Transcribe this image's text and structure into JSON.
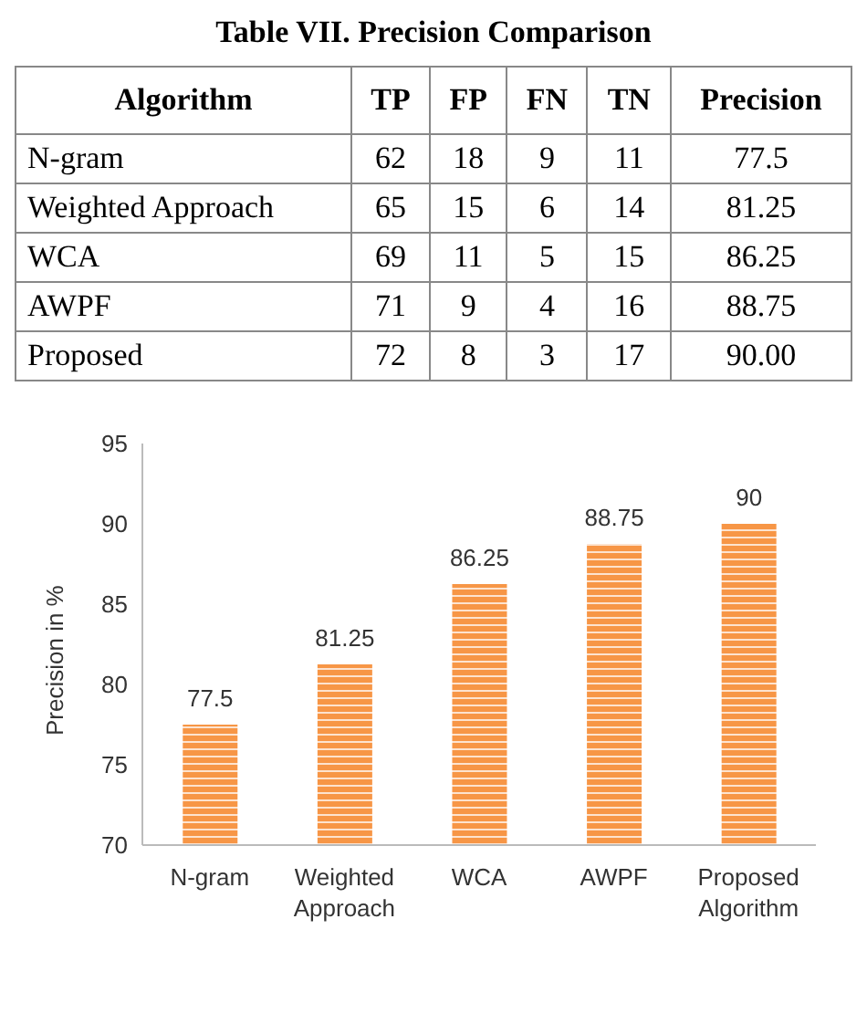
{
  "chart_data": [
    {
      "type": "heatmap",
      "title": "Table VII. Precision Comparison",
      "ylabel": "Algorithm",
      "categories": [
        "TP",
        "FP",
        "FN",
        "TN",
        "Precision"
      ],
      "y_categories": [
        "N-gram",
        "Weighted Approach",
        "WCA",
        "AWPF",
        "Proposed"
      ],
      "cells": [
        [
          62,
          18,
          9,
          11,
          77.5
        ],
        [
          65,
          15,
          6,
          14,
          81.25
        ],
        [
          69,
          11,
          5,
          15,
          86.25
        ],
        [
          71,
          9,
          4,
          16,
          88.75
        ],
        [
          72,
          8,
          3,
          17,
          90
        ]
      ],
      "cell_labels": [
        [
          "62",
          "18",
          "9",
          "11",
          "77.5"
        ],
        [
          "65",
          "15",
          "6",
          "14",
          "81.25"
        ],
        [
          "69",
          "11",
          "5",
          "15",
          "86.25"
        ],
        [
          "71",
          "9",
          "4",
          "16",
          "88.75"
        ],
        [
          "72",
          "8",
          "3",
          "17",
          "90.00"
        ]
      ]
    },
    {
      "type": "bar",
      "ylabel": "Precision in %",
      "categories": [
        "N-gram",
        "Weighted Approach",
        "WCA",
        "AWPF",
        "Proposed Algorithm"
      ],
      "values": [
        77.5,
        81.25,
        86.25,
        88.75,
        90
      ],
      "color": "#f79646",
      "ylim": [
        70,
        95
      ],
      "yticks": [
        70,
        75,
        80,
        85,
        90,
        95
      ],
      "data_labels": true
    }
  ]
}
